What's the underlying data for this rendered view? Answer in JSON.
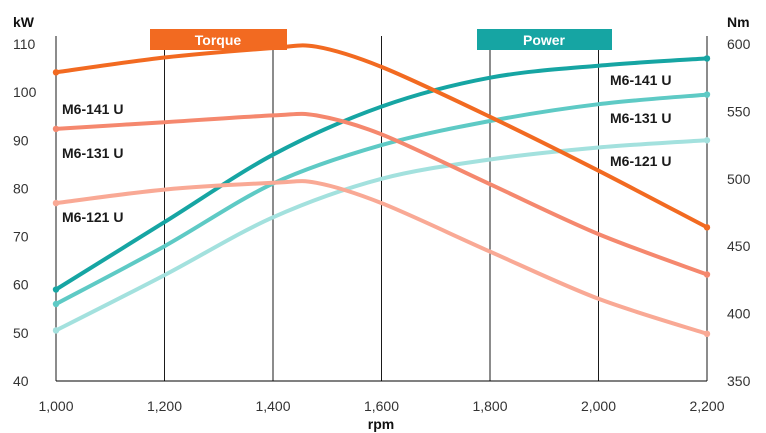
{
  "chart_data": {
    "type": "line",
    "xlabel": "rpm",
    "x": [
      1000,
      1200,
      1400,
      1600,
      1800,
      2000,
      2200
    ],
    "x_tick_labels": [
      "1,000",
      "1,200",
      "1,400",
      "1,600",
      "1,800",
      "2,000",
      "2,200"
    ],
    "xlim": [
      1000,
      2200
    ],
    "left_axis": {
      "unit": "kW",
      "ylim": [
        40,
        110
      ],
      "ticks": [
        "40",
        "50",
        "60",
        "70",
        "80",
        "90",
        "100",
        "110"
      ]
    },
    "right_axis": {
      "unit": "Nm",
      "ylim": [
        350,
        600
      ],
      "ticks": [
        "350",
        "400",
        "450",
        "500",
        "550",
        "600"
      ]
    },
    "grid": "vertical",
    "legend": [
      {
        "label": "Torque",
        "color": "#f26a21"
      },
      {
        "label": "Power",
        "color": "#16a5a3"
      }
    ],
    "series": [
      {
        "name": "M6-141 U",
        "group": "Torque",
        "axis": "right",
        "color": "#f26a21",
        "points": [
          [
            1000,
            579
          ],
          [
            1200,
            590
          ],
          [
            1400,
            597
          ],
          [
            1480,
            598
          ],
          [
            1600,
            583
          ],
          [
            1800,
            546
          ],
          [
            2000,
            506
          ],
          [
            2200,
            464
          ]
        ]
      },
      {
        "name": "M6-131 U",
        "group": "Torque",
        "axis": "right",
        "color": "#f5886e",
        "points": [
          [
            1000,
            537
          ],
          [
            1200,
            542
          ],
          [
            1400,
            547
          ],
          [
            1480,
            547
          ],
          [
            1600,
            533
          ],
          [
            1800,
            496
          ],
          [
            2000,
            459
          ],
          [
            2200,
            429
          ]
        ]
      },
      {
        "name": "M6-121 U",
        "group": "Torque",
        "axis": "right",
        "color": "#f9a995",
        "points": [
          [
            1000,
            482
          ],
          [
            1200,
            492
          ],
          [
            1400,
            497
          ],
          [
            1480,
            497
          ],
          [
            1600,
            482
          ],
          [
            1800,
            446
          ],
          [
            2000,
            411
          ],
          [
            2200,
            385
          ]
        ]
      },
      {
        "name": "M6-141 U",
        "group": "Power",
        "axis": "left",
        "color": "#16a5a3",
        "points": [
          [
            1000,
            59
          ],
          [
            1200,
            73
          ],
          [
            1400,
            87
          ],
          [
            1600,
            97
          ],
          [
            1800,
            103
          ],
          [
            2000,
            105.5
          ],
          [
            2200,
            107
          ]
        ]
      },
      {
        "name": "M6-131 U",
        "group": "Power",
        "axis": "left",
        "color": "#5ecac5",
        "points": [
          [
            1000,
            56
          ],
          [
            1200,
            68
          ],
          [
            1400,
            81
          ],
          [
            1600,
            89
          ],
          [
            1800,
            94
          ],
          [
            2000,
            97.5
          ],
          [
            2200,
            99.5
          ]
        ]
      },
      {
        "name": "M6-121 U",
        "group": "Power",
        "axis": "left",
        "color": "#a3e1de",
        "points": [
          [
            1000,
            50.5
          ],
          [
            1200,
            62
          ],
          [
            1400,
            74
          ],
          [
            1600,
            82
          ],
          [
            1800,
            86
          ],
          [
            2000,
            88.5
          ],
          [
            2200,
            90
          ]
        ]
      }
    ]
  }
}
